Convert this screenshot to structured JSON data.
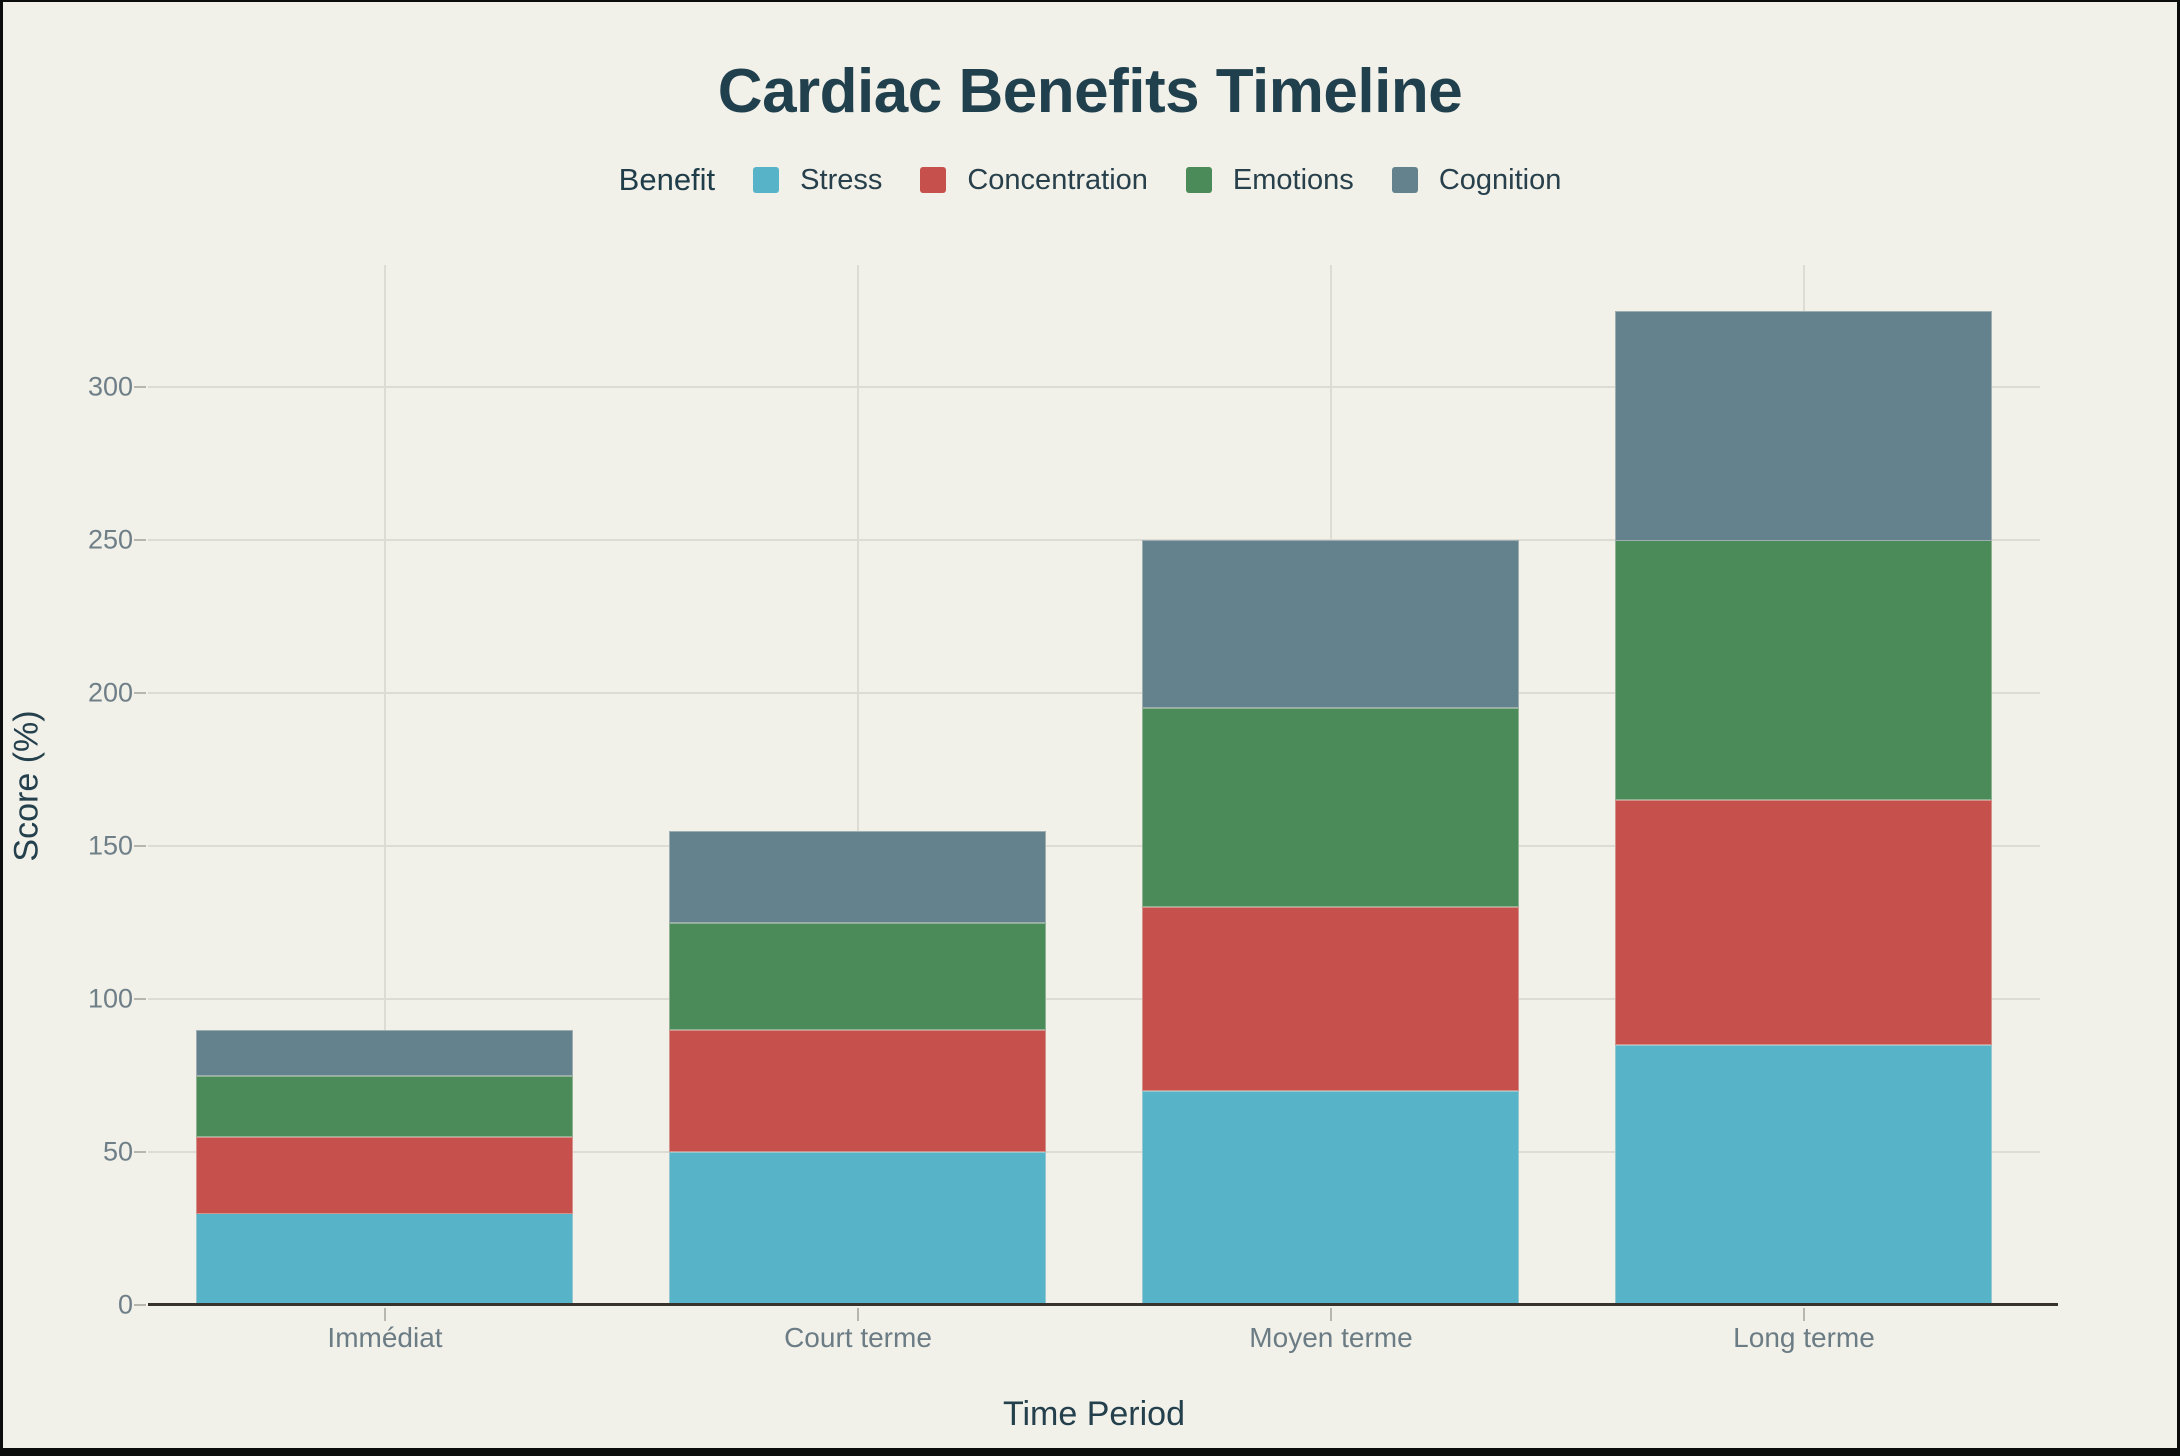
{
  "title": "Cardiac Benefits Timeline",
  "legend": {
    "title": "Benefit",
    "items": [
      {
        "label": "Stress",
        "color": "#57b3c8"
      },
      {
        "label": "Concentration",
        "color": "#c6504b"
      },
      {
        "label": "Emotions",
        "color": "#4b8a59"
      },
      {
        "label": "Cognition",
        "color": "#64828d"
      }
    ]
  },
  "x_axis": {
    "title": "Time Period",
    "categories": [
      "Immédiat",
      "Court terme",
      "Moyen terme",
      "Long terme"
    ]
  },
  "y_axis": {
    "title": "Score (%)",
    "ticks": [
      0,
      50,
      100,
      150,
      200,
      250,
      300
    ]
  },
  "chart_data": {
    "type": "bar",
    "stacked": true,
    "title": "Cardiac Benefits Timeline",
    "xlabel": "Time Period",
    "ylabel": "Score (%)",
    "categories": [
      "Immédiat",
      "Court terme",
      "Moyen terme",
      "Long terme"
    ],
    "series": [
      {
        "name": "Stress",
        "color": "#57b3c8",
        "values": [
          30,
          50,
          70,
          85
        ]
      },
      {
        "name": "Concentration",
        "color": "#c6504b",
        "values": [
          25,
          40,
          60,
          80
        ]
      },
      {
        "name": "Emotions",
        "color": "#4b8a59",
        "values": [
          20,
          35,
          65,
          85
        ]
      },
      {
        "name": "Cognition",
        "color": "#64828d",
        "values": [
          15,
          30,
          55,
          75
        ]
      }
    ],
    "totals": [
      90,
      155,
      250,
      325
    ],
    "ylim": [
      0,
      340
    ],
    "grid": true,
    "legend_position": "top"
  },
  "colors": {
    "background": "#f1f0e9",
    "frame": "#0b0c0c",
    "title": "#21404e",
    "axis_title": "#24404c",
    "tick_label": "#6f7f88",
    "grid": "#dcdbd4",
    "axis_line": "#37322c",
    "tick_mark": "#b6b6ae"
  }
}
